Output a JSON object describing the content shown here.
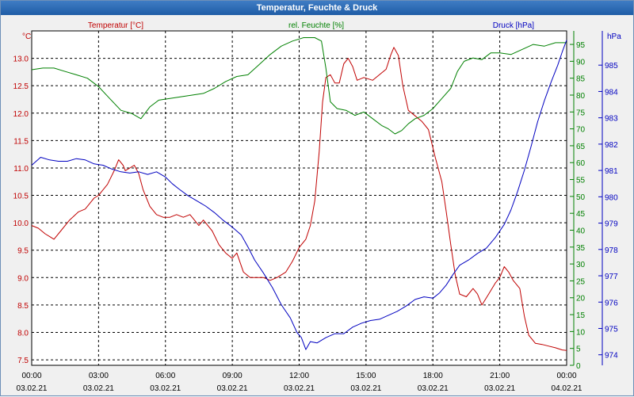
{
  "window": {
    "title": "Temperatur, Feuchte & Druck"
  },
  "colors": {
    "temperature": "#c00000",
    "humidity": "#008000",
    "pressure": "#0000c0",
    "grid": "#000000",
    "plot_background": "#ffffff"
  },
  "chart_data": {
    "type": "line",
    "title": "Temperatur, Feuchte & Druck",
    "x_ticks": [
      {
        "time": "00:00",
        "date": "03.02.21"
      },
      {
        "time": "03:00",
        "date": "03.02.21"
      },
      {
        "time": "06:00",
        "date": "03.02.21"
      },
      {
        "time": "09:00",
        "date": "03.02.21"
      },
      {
        "time": "12:00",
        "date": "03.02.21"
      },
      {
        "time": "15:00",
        "date": "03.02.21"
      },
      {
        "time": "18:00",
        "date": "03.02.21"
      },
      {
        "time": "21:00",
        "date": "03.02.21"
      },
      {
        "time": "00:00",
        "date": "04.02.21"
      }
    ],
    "x_unit": "hours",
    "xlim": [
      0,
      24
    ],
    "grid": true,
    "axes": {
      "temperature": {
        "label": "Temperatur [°C]",
        "unit": "°C",
        "ylim": [
          7.4,
          13.5
        ],
        "ticks": [
          "7.5",
          "8.0",
          "8.5",
          "9.0",
          "9.5",
          "10.0",
          "10.5",
          "11.0",
          "11.5",
          "12.0",
          "12.5",
          "13.0"
        ]
      },
      "humidity": {
        "label": "rel. Feuchte [%]",
        "unit": "%",
        "ylim": [
          0,
          99
        ],
        "ticks": [
          "0",
          "5",
          "10",
          "15",
          "20",
          "25",
          "30",
          "35",
          "40",
          "45",
          "50",
          "55",
          "60",
          "65",
          "70",
          "75",
          "80",
          "85",
          "90",
          "95"
        ]
      },
      "pressure": {
        "label": "Druck [hPa]",
        "unit": "hPa",
        "ylim": [
          973.6,
          986.3
        ],
        "ticks": [
          "974",
          "975",
          "976",
          "977",
          "978",
          "979",
          "980",
          "981",
          "982",
          "983",
          "984",
          "985"
        ]
      }
    },
    "series": [
      {
        "name": "Temperatur [°C]",
        "axis": "temperature",
        "points": [
          [
            0,
            9.95
          ],
          [
            0.3,
            9.9
          ],
          [
            0.6,
            9.8
          ],
          [
            0.8,
            9.75
          ],
          [
            1.0,
            9.7
          ],
          [
            1.3,
            9.85
          ],
          [
            1.7,
            10.05
          ],
          [
            2.1,
            10.2
          ],
          [
            2.4,
            10.25
          ],
          [
            2.6,
            10.35
          ],
          [
            2.8,
            10.45
          ],
          [
            3.0,
            10.5
          ],
          [
            3.2,
            10.6
          ],
          [
            3.4,
            10.7
          ],
          [
            3.7,
            10.95
          ],
          [
            3.9,
            11.15
          ],
          [
            4.1,
            11.05
          ],
          [
            4.2,
            10.95
          ],
          [
            4.4,
            11.0
          ],
          [
            4.6,
            11.05
          ],
          [
            4.8,
            10.9
          ],
          [
            5.0,
            10.6
          ],
          [
            5.3,
            10.3
          ],
          [
            5.6,
            10.15
          ],
          [
            5.9,
            10.1
          ],
          [
            6.2,
            10.1
          ],
          [
            6.5,
            10.15
          ],
          [
            6.8,
            10.1
          ],
          [
            7.1,
            10.15
          ],
          [
            7.3,
            10.05
          ],
          [
            7.5,
            9.95
          ],
          [
            7.7,
            10.05
          ],
          [
            7.9,
            9.95
          ],
          [
            8.1,
            9.85
          ],
          [
            8.4,
            9.6
          ],
          [
            8.7,
            9.45
          ],
          [
            9.0,
            9.35
          ],
          [
            9.2,
            9.45
          ],
          [
            9.5,
            9.1
          ],
          [
            9.8,
            9.0
          ],
          [
            10.1,
            9.0
          ],
          [
            10.4,
            9.0
          ],
          [
            10.7,
            8.95
          ],
          [
            11.0,
            9.0
          ],
          [
            11.4,
            9.1
          ],
          [
            11.7,
            9.3
          ],
          [
            12.0,
            9.55
          ],
          [
            12.3,
            9.7
          ],
          [
            12.5,
            9.95
          ],
          [
            12.7,
            10.4
          ],
          [
            12.9,
            11.3
          ],
          [
            13.05,
            12.2
          ],
          [
            13.2,
            12.65
          ],
          [
            13.4,
            12.7
          ],
          [
            13.6,
            12.55
          ],
          [
            13.8,
            12.55
          ],
          [
            14.0,
            12.9
          ],
          [
            14.2,
            13.0
          ],
          [
            14.4,
            12.85
          ],
          [
            14.6,
            12.6
          ],
          [
            14.9,
            12.65
          ],
          [
            15.3,
            12.6
          ],
          [
            15.6,
            12.7
          ],
          [
            15.9,
            12.8
          ],
          [
            16.1,
            13.05
          ],
          [
            16.25,
            13.2
          ],
          [
            16.45,
            13.05
          ],
          [
            16.65,
            12.5
          ],
          [
            16.9,
            12.05
          ],
          [
            17.2,
            11.95
          ],
          [
            17.5,
            11.85
          ],
          [
            17.8,
            11.7
          ],
          [
            18.1,
            11.2
          ],
          [
            18.4,
            10.75
          ],
          [
            18.6,
            10.2
          ],
          [
            18.8,
            9.6
          ],
          [
            19.0,
            9.05
          ],
          [
            19.2,
            8.7
          ],
          [
            19.5,
            8.65
          ],
          [
            19.8,
            8.8
          ],
          [
            20.0,
            8.7
          ],
          [
            20.2,
            8.5
          ],
          [
            20.5,
            8.7
          ],
          [
            20.8,
            8.9
          ],
          [
            21.0,
            9.0
          ],
          [
            21.2,
            9.2
          ],
          [
            21.4,
            9.1
          ],
          [
            21.6,
            8.95
          ],
          [
            21.9,
            8.8
          ],
          [
            22.1,
            8.3
          ],
          [
            22.3,
            7.95
          ],
          [
            22.6,
            7.8
          ],
          [
            22.9,
            7.78
          ],
          [
            23.2,
            7.75
          ],
          [
            23.5,
            7.72
          ],
          [
            23.8,
            7.68
          ],
          [
            24.0,
            7.67
          ]
        ]
      },
      {
        "name": "rel. Feuchte [%]",
        "axis": "humidity",
        "points": [
          [
            0,
            87.5
          ],
          [
            0.5,
            88
          ],
          [
            1.0,
            88
          ],
          [
            1.5,
            87
          ],
          [
            2.0,
            86
          ],
          [
            2.5,
            85
          ],
          [
            3.0,
            82.5
          ],
          [
            3.5,
            79
          ],
          [
            4.0,
            75.5
          ],
          [
            4.5,
            74.5
          ],
          [
            4.9,
            73
          ],
          [
            5.3,
            76.5
          ],
          [
            5.7,
            78.5
          ],
          [
            6.2,
            79
          ],
          [
            6.7,
            79.5
          ],
          [
            7.2,
            80
          ],
          [
            7.7,
            80.5
          ],
          [
            8.2,
            82
          ],
          [
            8.7,
            84
          ],
          [
            9.2,
            85.5
          ],
          [
            9.7,
            86
          ],
          [
            10.2,
            89
          ],
          [
            10.7,
            92
          ],
          [
            11.2,
            94.5
          ],
          [
            11.7,
            96
          ],
          [
            12.2,
            97
          ],
          [
            12.7,
            97
          ],
          [
            13.0,
            96
          ],
          [
            13.2,
            88
          ],
          [
            13.4,
            78
          ],
          [
            13.7,
            76
          ],
          [
            14.1,
            75.5
          ],
          [
            14.5,
            74
          ],
          [
            14.9,
            75
          ],
          [
            15.3,
            73
          ],
          [
            15.7,
            71
          ],
          [
            16.0,
            70
          ],
          [
            16.3,
            68.5
          ],
          [
            16.6,
            69.5
          ],
          [
            16.9,
            71.5
          ],
          [
            17.2,
            73
          ],
          [
            17.6,
            74
          ],
          [
            18.0,
            76
          ],
          [
            18.4,
            79
          ],
          [
            18.8,
            82
          ],
          [
            19.1,
            87
          ],
          [
            19.4,
            90
          ],
          [
            19.8,
            91
          ],
          [
            20.2,
            90.5
          ],
          [
            20.6,
            92.5
          ],
          [
            21.0,
            92.5
          ],
          [
            21.5,
            92
          ],
          [
            22.0,
            93.5
          ],
          [
            22.5,
            95
          ],
          [
            23.0,
            94.5
          ],
          [
            23.5,
            95.5
          ],
          [
            24.0,
            95.5
          ]
        ]
      },
      {
        "name": "Druck [hPa]",
        "axis": "pressure",
        "points": [
          [
            0,
            981.2
          ],
          [
            0.4,
            981.5
          ],
          [
            0.8,
            981.4
          ],
          [
            1.2,
            981.35
          ],
          [
            1.6,
            981.35
          ],
          [
            2.0,
            981.45
          ],
          [
            2.4,
            981.4
          ],
          [
            2.8,
            981.25
          ],
          [
            3.2,
            981.2
          ],
          [
            3.6,
            981.05
          ],
          [
            4.0,
            980.95
          ],
          [
            4.4,
            980.9
          ],
          [
            4.8,
            980.95
          ],
          [
            5.2,
            980.85
          ],
          [
            5.6,
            980.95
          ],
          [
            6.0,
            980.75
          ],
          [
            6.3,
            980.5
          ],
          [
            6.6,
            980.3
          ],
          [
            7.0,
            980.05
          ],
          [
            7.4,
            979.85
          ],
          [
            7.8,
            979.65
          ],
          [
            8.2,
            979.4
          ],
          [
            8.6,
            979.1
          ],
          [
            9.0,
            978.85
          ],
          [
            9.4,
            978.55
          ],
          [
            9.7,
            978.1
          ],
          [
            10.0,
            977.6
          ],
          [
            10.4,
            977.1
          ],
          [
            10.8,
            976.55
          ],
          [
            11.2,
            975.9
          ],
          [
            11.6,
            975.4
          ],
          [
            11.9,
            974.85
          ],
          [
            12.1,
            974.65
          ],
          [
            12.3,
            974.2
          ],
          [
            12.5,
            974.5
          ],
          [
            12.8,
            974.45
          ],
          [
            13.2,
            974.65
          ],
          [
            13.6,
            974.8
          ],
          [
            14.0,
            974.8
          ],
          [
            14.4,
            975.05
          ],
          [
            14.8,
            975.2
          ],
          [
            15.2,
            975.3
          ],
          [
            15.6,
            975.35
          ],
          [
            16.0,
            975.5
          ],
          [
            16.4,
            975.65
          ],
          [
            16.8,
            975.85
          ],
          [
            17.2,
            976.1
          ],
          [
            17.6,
            976.2
          ],
          [
            18.0,
            976.15
          ],
          [
            18.3,
            976.35
          ],
          [
            18.6,
            976.65
          ],
          [
            18.9,
            977.05
          ],
          [
            19.2,
            977.4
          ],
          [
            19.6,
            977.6
          ],
          [
            20.0,
            977.85
          ],
          [
            20.4,
            978.05
          ],
          [
            20.8,
            978.45
          ],
          [
            21.2,
            978.95
          ],
          [
            21.5,
            979.5
          ],
          [
            21.8,
            980.2
          ],
          [
            22.1,
            981.0
          ],
          [
            22.4,
            981.9
          ],
          [
            22.7,
            982.85
          ],
          [
            23.0,
            983.65
          ],
          [
            23.3,
            984.35
          ],
          [
            23.6,
            985.0
          ],
          [
            23.8,
            985.5
          ],
          [
            24.0,
            985.95
          ]
        ]
      }
    ]
  }
}
